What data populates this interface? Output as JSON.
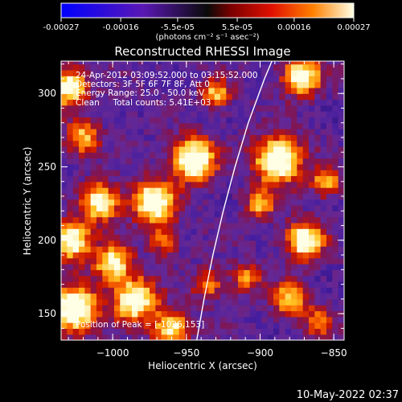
{
  "colorbar": {
    "tick_labels": [
      "-0.00027",
      "-0.00016",
      "-5.5e-05",
      "5.5e-05",
      "0.00016",
      "0.00027"
    ],
    "tick_values": [
      -0.00027,
      -0.00016,
      -5.5e-05,
      5.5e-05,
      0.00016,
      0.00027
    ],
    "range": [
      -0.00027,
      0.00027
    ],
    "unit_label": "(photons cm⁻² s⁻¹ asec⁻²)"
  },
  "footer": {
    "timestamp": "10-May-2022 02:37"
  },
  "chart_data": {
    "type": "heatmap",
    "title": "Reconstructed RHESSI Image",
    "xlabel": "Heliocentric X (arcsec)",
    "ylabel": "Heliocentric Y (arcsec)",
    "xlim": [
      -1035,
      -843
    ],
    "ylim": [
      132,
      322
    ],
    "x_ticks": [
      -1000,
      -950,
      -900,
      -850
    ],
    "x_tick_labels": [
      "−1000",
      "−950",
      "−900",
      "−850"
    ],
    "y_ticks": [
      150,
      200,
      250,
      300
    ],
    "y_tick_labels": [
      "150",
      "200",
      "250",
      "300"
    ],
    "annotations": [
      "24-Apr-2012 03:09:52.000 to 03:15:52.000",
      "Detectors: 3F 5F 6F 7F 8F, Att 0",
      "Energy Range: 25.0 - 50.0 keV",
      "Clean     Total counts: 5.41E+03"
    ],
    "peak_label": "Position of Peak = [-1026,153]",
    "limb_curve": [
      [
        -943,
        132
      ],
      [
        -938,
        160
      ],
      [
        -932,
        190
      ],
      [
        -925,
        220
      ],
      [
        -917,
        250
      ],
      [
        -908,
        280
      ],
      [
        -897,
        310
      ],
      [
        -892,
        322
      ]
    ],
    "hot_spots": [
      {
        "x": -945,
        "y": 255,
        "intensity": 1.0,
        "radius": 10
      },
      {
        "x": -888,
        "y": 255,
        "intensity": 1.0,
        "radius": 11
      },
      {
        "x": -972,
        "y": 226,
        "intensity": 0.95,
        "radius": 10
      },
      {
        "x": -1008,
        "y": 226,
        "intensity": 0.8,
        "radius": 9
      },
      {
        "x": -872,
        "y": 312,
        "intensity": 0.85,
        "radius": 9
      },
      {
        "x": -930,
        "y": 300,
        "intensity": 0.6,
        "radius": 7
      },
      {
        "x": -1026,
        "y": 153,
        "intensity": 1.0,
        "radius": 11
      },
      {
        "x": -1030,
        "y": 305,
        "intensity": 0.85,
        "radius": 9
      },
      {
        "x": -1020,
        "y": 270,
        "intensity": 0.6,
        "radius": 8
      },
      {
        "x": -1028,
        "y": 200,
        "intensity": 0.9,
        "radius": 9
      },
      {
        "x": -1000,
        "y": 185,
        "intensity": 0.75,
        "radius": 9
      },
      {
        "x": -985,
        "y": 160,
        "intensity": 0.9,
        "radius": 10
      },
      {
        "x": -960,
        "y": 140,
        "intensity": 0.75,
        "radius": 9
      },
      {
        "x": -965,
        "y": 200,
        "intensity": 0.45,
        "radius": 7
      },
      {
        "x": -935,
        "y": 170,
        "intensity": 0.5,
        "radius": 7
      },
      {
        "x": -910,
        "y": 175,
        "intensity": 0.5,
        "radius": 7
      },
      {
        "x": -900,
        "y": 225,
        "intensity": 0.55,
        "radius": 7
      },
      {
        "x": -870,
        "y": 200,
        "intensity": 0.85,
        "radius": 9
      },
      {
        "x": -855,
        "y": 240,
        "intensity": 0.6,
        "radius": 7
      },
      {
        "x": -880,
        "y": 160,
        "intensity": 0.65,
        "radius": 8
      },
      {
        "x": -860,
        "y": 145,
        "intensity": 0.45,
        "radius": 7
      }
    ]
  }
}
